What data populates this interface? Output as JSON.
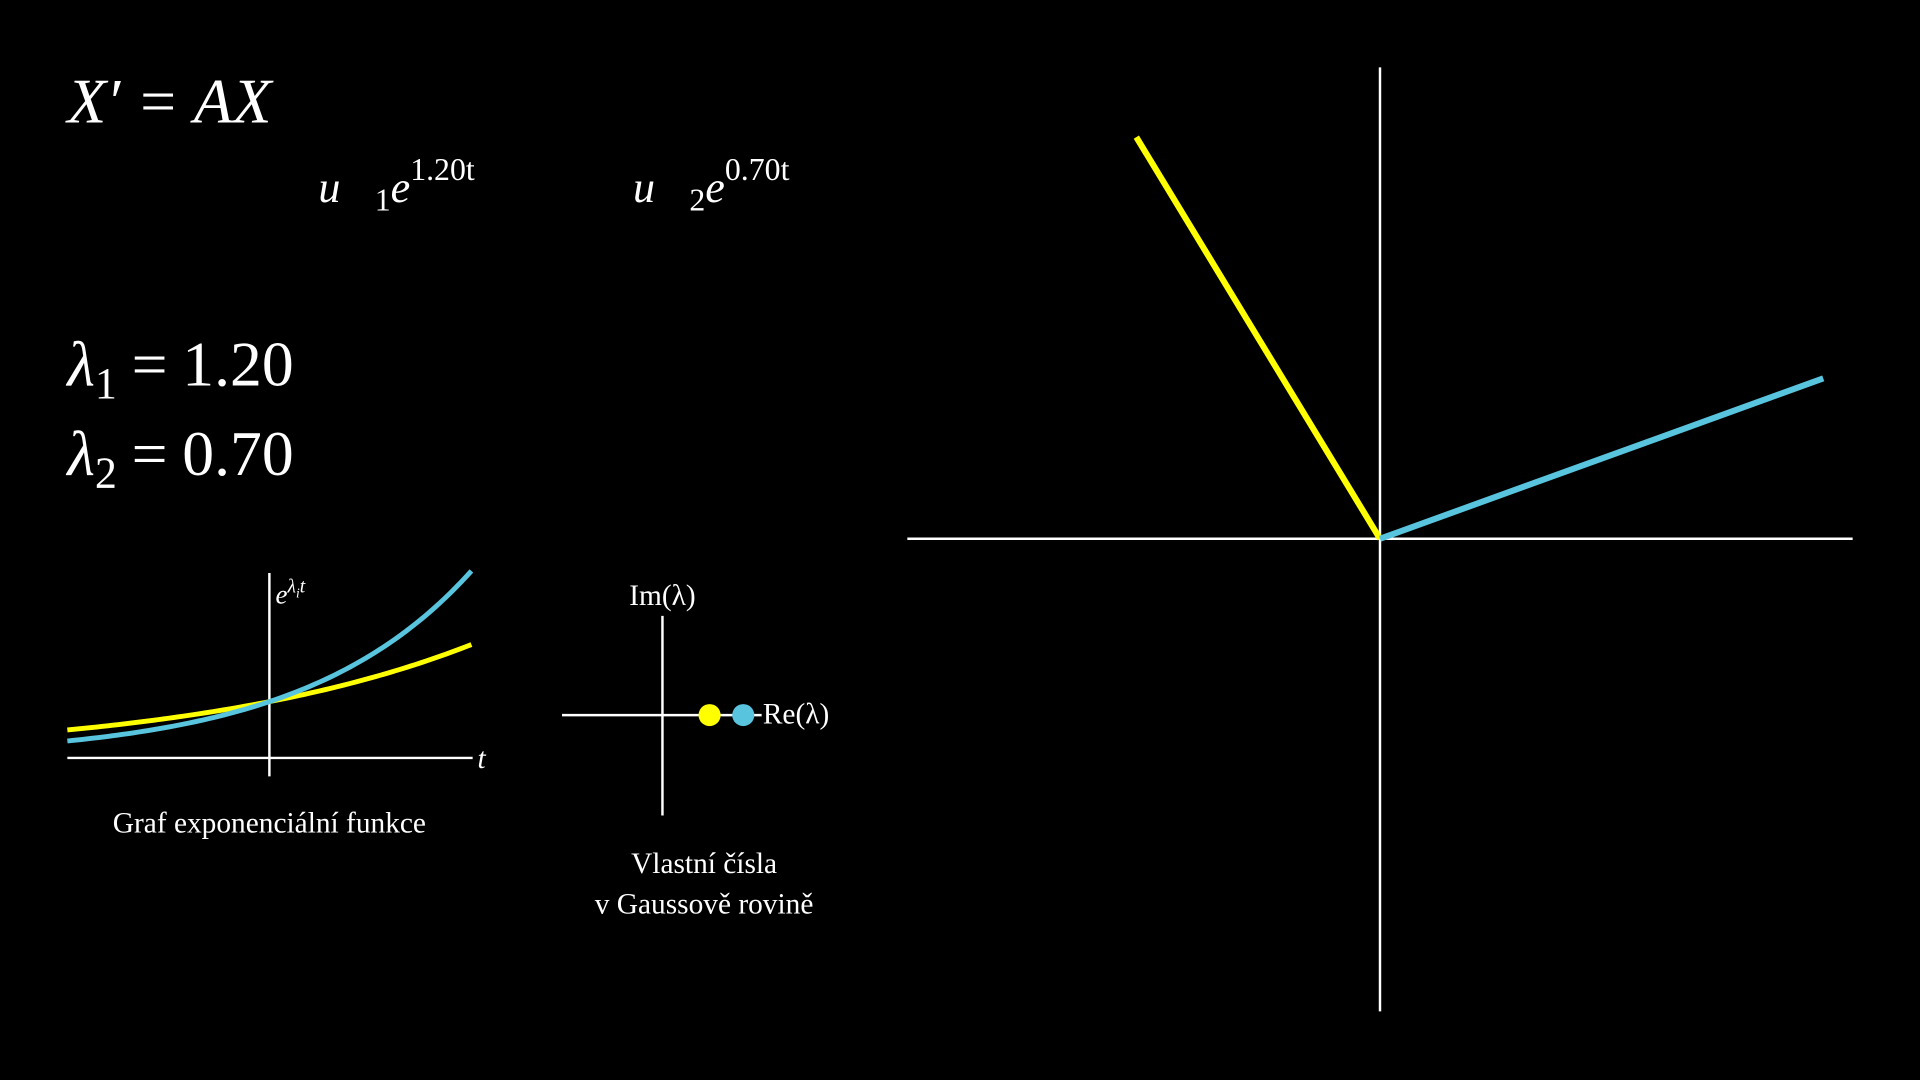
{
  "equation": "X′ = AX",
  "solutions": [
    {
      "vector": "u⃗",
      "index": "1",
      "base": "e",
      "exponent": "1.20t"
    },
    {
      "vector": "u⃗",
      "index": "2",
      "base": "e",
      "exponent": "0.70t"
    }
  ],
  "eigenvalues": [
    {
      "symbol": "λ",
      "index": "1",
      "relation": "=",
      "value_label": "1.20",
      "value": 1.2,
      "color": "#58c4dd"
    },
    {
      "symbol": "λ",
      "index": "2",
      "relation": "=",
      "value_label": "0.70",
      "value": 0.7,
      "color": "#ffff00"
    }
  ],
  "exp_graph": {
    "y_label_base": "e",
    "y_label_symbol": "λ",
    "y_label_index": "i",
    "y_label_var": "t",
    "x_label": "t",
    "caption": "Graf exponenciální funkce"
  },
  "complex_plane": {
    "y_label": "Im(λ)",
    "x_label": "Re(λ)",
    "caption": [
      "Vlastní čísla",
      "v Gaussově rovině"
    ]
  }
}
